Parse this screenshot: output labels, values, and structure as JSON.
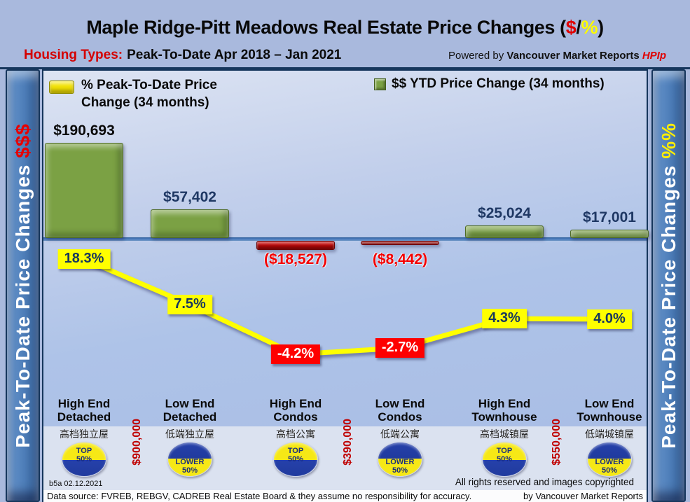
{
  "header": {
    "title_prefix": "Maple Ridge-Pitt Meadows Real Estate Price Changes (",
    "title_dollar": "$",
    "title_slash": "/",
    "title_percent": "%",
    "title_suffix": ")",
    "subtitle_label": "Housing Types:",
    "subtitle_text": "Peak-To-Date Apr 2018 – Jan 2021",
    "powered_prefix": "Powered by ",
    "powered_brand": "Vancouver Market Reports ",
    "powered_hpi": "HPIp"
  },
  "sidebars": {
    "left_text": "Peak-To-Date Price Changes ",
    "left_suffix": "$$$",
    "right_text": "Peak-To-Date Price  Changes  ",
    "right_suffix": "%%"
  },
  "legend": {
    "pct_label": "% Peak-To-Date Price Change (34 months)",
    "usd_label": "$$ YTD Price Change (34 months)"
  },
  "chart_data": {
    "type": "combo (bar + line)",
    "categories": [
      "High End Detached",
      "Low End Detached",
      "High End Condos",
      "Low End Condos",
      "High End Townhouse",
      "Low End Townhouse"
    ],
    "categories_zh": [
      "高档独立屋",
      "低端独立屋",
      "高档公寓",
      "低端公寓",
      "高档城镇屋",
      "低端城镇屋"
    ],
    "segment_badges": [
      "TOP 50%",
      "LOWER 50%",
      "TOP 50%",
      "LOWER 50%",
      "TOP 50%",
      "LOWER 50%"
    ],
    "series": [
      {
        "name": "$$ YTD Price Change (34 months)",
        "type": "bar",
        "values": [
          190693,
          57402,
          -18527,
          -8442,
          25024,
          17001
        ],
        "labels": [
          "$190,693",
          "$57,402",
          "($18,527)",
          "($8,442)",
          "$25,024",
          "$17,001"
        ]
      },
      {
        "name": "% Peak-To-Date Price Change (34 months)",
        "type": "line",
        "values": [
          18.3,
          7.5,
          -4.2,
          -2.7,
          4.3,
          4.0
        ],
        "labels": [
          "18.3%",
          "7.5%",
          "-4.2%",
          "-2.7%",
          "4.3%",
          "4.0%"
        ]
      }
    ],
    "price_thresholds": [
      {
        "between": [
          0,
          1
        ],
        "label": "$900,000"
      },
      {
        "between": [
          2,
          3
        ],
        "label": "$390,000"
      },
      {
        "between": [
          4,
          5
        ],
        "label": "$550,000"
      }
    ],
    "axis": {
      "zero_line": true,
      "x_gridlines": false,
      "legend_position": "top"
    },
    "colors": {
      "bar_positive": "#7ba144",
      "bar_negative": "#c40808",
      "line": "#ffff00",
      "pct_label_positive_bg": "#ffff00",
      "pct_label_negative_bg": "#fe0000",
      "value_positive": "#1f3864",
      "value_negative": "#f40000"
    }
  },
  "footer": {
    "version": "b5a 02.12.2021",
    "rights_line1": "All rights reserved and  images copyrighted",
    "rights_line2": "by Vancouver Market Reports",
    "source": "Data source: FVREB, REBGV, CADREB Real Estate Board & they assume no responsibility for accuracy."
  }
}
